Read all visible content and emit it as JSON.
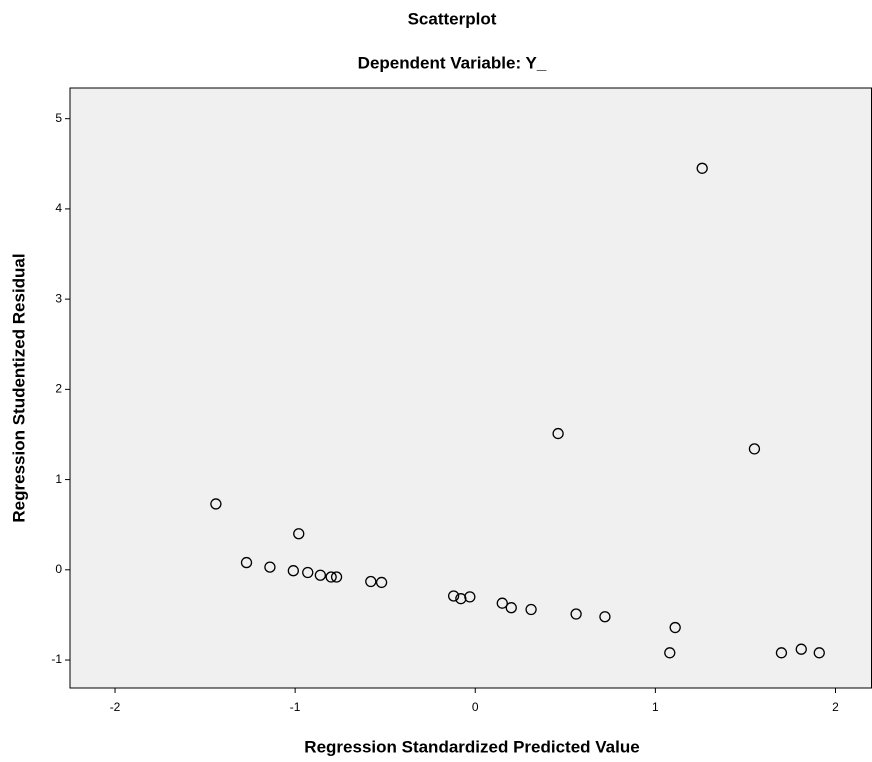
{
  "chart_data": {
    "type": "scatter",
    "title": "Scatterplot",
    "subtitle": "Dependent Variable: Y_",
    "x_label": "Regression Standardized Predicted Value",
    "y_label": "Regression Studentized Residual",
    "x": [
      -1.44,
      -1.27,
      -1.14,
      -1.01,
      -0.98,
      -0.93,
      -0.86,
      -0.8,
      -0.77,
      -0.58,
      -0.52,
      -0.12,
      -0.08,
      -0.03,
      0.15,
      0.2,
      0.31,
      0.46,
      0.56,
      0.72,
      1.08,
      1.11,
      1.26,
      1.55,
      1.7,
      1.81,
      1.91
    ],
    "values": [
      0.73,
      0.08,
      0.03,
      -0.01,
      0.4,
      -0.03,
      -0.06,
      -0.08,
      -0.08,
      -0.13,
      -0.14,
      -0.29,
      -0.32,
      -0.3,
      -0.37,
      -0.42,
      -0.44,
      1.51,
      -0.49,
      -0.52,
      -0.92,
      -0.64,
      4.45,
      1.34,
      -0.92,
      -0.88,
      -0.92
    ],
    "color": "#000000",
    "background": "#f0f0f0",
    "xlim": [
      -2.25,
      2.2
    ],
    "ylim": [
      -1.31,
      5.34
    ],
    "xticks": [
      -2,
      -1,
      0,
      1,
      2
    ],
    "yticks": [
      -1,
      0,
      1,
      2,
      3,
      4,
      5
    ]
  }
}
